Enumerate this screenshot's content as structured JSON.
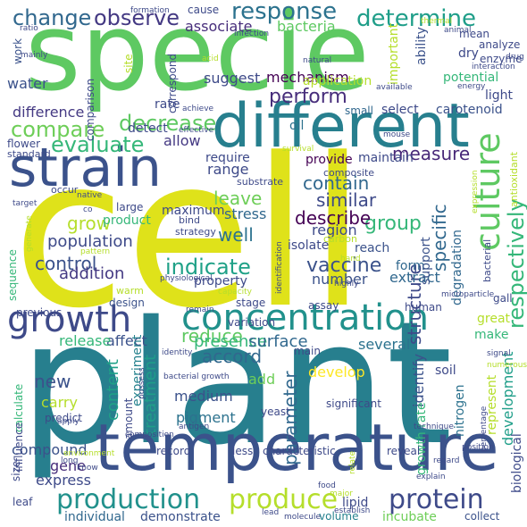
{
  "words": [
    {
      "t": "cell",
      "c": "#dfe21a"
    },
    {
      "t": "plant",
      "c": "#277f8e"
    },
    {
      "t": "specie",
      "c": "#5ec962"
    },
    {
      "t": "temperature",
      "c": "#3b528b"
    },
    {
      "t": "different",
      "c": "#277f8e"
    },
    {
      "t": "strain",
      "c": "#3b528b"
    },
    {
      "t": "concentration",
      "c": "#21918c"
    },
    {
      "t": "growth",
      "c": "#3e4a89"
    },
    {
      "t": "culture",
      "c": "#5ec962"
    },
    {
      "t": "production",
      "c": "#21918c"
    },
    {
      "t": "protein",
      "c": "#3e4a89"
    },
    {
      "t": "produce",
      "c": "#b5de2b"
    },
    {
      "t": "response",
      "c": "#2c728e"
    },
    {
      "t": "determine",
      "c": "#1f9e89"
    },
    {
      "t": "observe",
      "c": "#443983"
    },
    {
      "t": "change",
      "c": "#31688e"
    },
    {
      "t": "respectively",
      "c": "#35b779"
    },
    {
      "t": "vaccine",
      "c": "#3b528b"
    },
    {
      "t": "indicate",
      "c": "#1fa187"
    },
    {
      "t": "decrease",
      "c": "#5ec962"
    },
    {
      "t": "evaluate",
      "c": "#35b779"
    },
    {
      "t": "compare",
      "c": "#6ece58"
    },
    {
      "t": "perform",
      "c": "#472d7b"
    },
    {
      "t": "specific",
      "c": "#31688e"
    },
    {
      "t": "structure",
      "c": "#3e4a89"
    },
    {
      "t": "parameter",
      "c": "#31688e"
    },
    {
      "t": "group",
      "c": "#35b779"
    },
    {
      "t": "measure",
      "c": "#482878"
    },
    {
      "t": "contain",
      "c": "#31688e"
    },
    {
      "t": "similar",
      "c": "#3e4a89"
    },
    {
      "t": "describe",
      "c": "#440154"
    },
    {
      "t": "control",
      "c": "#3b528b"
    },
    {
      "t": "reduce",
      "c": "#5ec962"
    },
    {
      "t": "accord",
      "c": "#31688e"
    },
    {
      "t": "well",
      "c": "#2c728e"
    },
    {
      "t": "leave",
      "c": "#6ece58"
    },
    {
      "t": "grow",
      "c": "#b5de2b"
    },
    {
      "t": "content",
      "c": "#1fa187"
    },
    {
      "t": "treatment",
      "c": "#1f9e89"
    },
    {
      "t": "new",
      "c": "#3b528b"
    },
    {
      "t": "presence",
      "c": "#35b779"
    },
    {
      "t": "surface",
      "c": "#31688e"
    },
    {
      "t": "population",
      "c": "#3e4a89"
    },
    {
      "t": "addition",
      "c": "#443983"
    },
    {
      "t": "associate",
      "c": "#472d7b"
    },
    {
      "t": "bacteria",
      "c": "#5ec962"
    },
    {
      "t": "mechanism",
      "c": "#440154"
    },
    {
      "t": "suggest",
      "c": "#3e4a89"
    },
    {
      "t": "water",
      "c": "#3b528b"
    },
    {
      "t": "difference",
      "c": "#443983"
    },
    {
      "t": "allow",
      "c": "#443983"
    },
    {
      "t": "range",
      "c": "#3e4a89"
    },
    {
      "t": "stress",
      "c": "#31688e"
    },
    {
      "t": "region",
      "c": "#3e4a89"
    },
    {
      "t": "number",
      "c": "#3b528b"
    },
    {
      "t": "extract",
      "c": "#31688e"
    },
    {
      "t": "development",
      "c": "#1f9e89"
    },
    {
      "t": "several",
      "c": "#2c728e"
    },
    {
      "t": "affect",
      "c": "#3b528b"
    },
    {
      "t": "release",
      "c": "#35b779"
    },
    {
      "t": "medium",
      "c": "#3b528b"
    },
    {
      "t": "carry",
      "c": "#b5de2b"
    },
    {
      "t": "add",
      "c": "#6ece58"
    },
    {
      "t": "pigment",
      "c": "#2c728e"
    },
    {
      "t": "identify",
      "c": "#3b528b"
    },
    {
      "t": "develop",
      "c": "#fde725"
    },
    {
      "t": "compound",
      "c": "#3b528b"
    },
    {
      "t": "express",
      "c": "#3e4a89"
    },
    {
      "t": "gene",
      "c": "#472d7b"
    },
    {
      "t": "individual",
      "c": "#31688e"
    },
    {
      "t": "demonstrate",
      "c": "#3b528b"
    },
    {
      "t": "lipid",
      "c": "#3e4a89"
    },
    {
      "t": "volume",
      "c": "#26828e"
    },
    {
      "t": "incubate",
      "c": "#6ece58"
    },
    {
      "t": "collect",
      "c": "#3b528b"
    },
    {
      "t": "biological",
      "c": "#3e4a89"
    },
    {
      "t": "represent",
      "c": "#b5de2b"
    },
    {
      "t": "nitrogen",
      "c": "#2c728e"
    },
    {
      "t": "growth rate",
      "c": "#35b779"
    },
    {
      "t": "soil",
      "c": "#3e4a89"
    },
    {
      "t": "make",
      "c": "#35b779"
    },
    {
      "t": "great",
      "c": "#b5de2b"
    },
    {
      "t": "form",
      "c": "#31688e"
    },
    {
      "t": "degradation",
      "c": "#31688e"
    },
    {
      "t": "support",
      "c": "#3b528b"
    },
    {
      "t": "provide",
      "c": "#440154"
    },
    {
      "t": "maintain",
      "c": "#3e4a89"
    },
    {
      "t": "reach",
      "c": "#3b528b"
    },
    {
      "t": "isolate",
      "c": "#3e4a89"
    },
    {
      "t": "experiment",
      "c": "#26828e"
    },
    {
      "t": "design",
      "c": "#3b528b"
    },
    {
      "t": "property",
      "c": "#3e4a89"
    },
    {
      "t": "maximum",
      "c": "#3e4a89"
    },
    {
      "t": "product",
      "c": "#35b779"
    },
    {
      "t": "require",
      "c": "#3e4a89"
    },
    {
      "t": "detect",
      "c": "#3e4a89"
    },
    {
      "t": "rate",
      "c": "#3e4a89"
    },
    {
      "t": "oil",
      "c": "#2c728e"
    },
    {
      "t": "small",
      "c": "#31688e"
    },
    {
      "t": "select",
      "c": "#3e4a89"
    },
    {
      "t": "carotenoid",
      "c": "#3b528b"
    },
    {
      "t": "light",
      "c": "#3e4a89"
    },
    {
      "t": "potential",
      "c": "#35b779"
    },
    {
      "t": "important",
      "c": "#b5de2b"
    },
    {
      "t": "application",
      "c": "#b5de2b"
    },
    {
      "t": "ability",
      "c": "#3b528b"
    },
    {
      "t": "dry",
      "c": "#3e4a89"
    },
    {
      "t": "mean",
      "c": "#3e4a89"
    },
    {
      "t": "analyze",
      "c": "#3e4a89"
    },
    {
      "t": "enzyme",
      "c": "#3e4a89"
    },
    {
      "t": "correspond",
      "c": "#3e4a89"
    },
    {
      "t": "comparison",
      "c": "#3e4a89"
    },
    {
      "t": "site",
      "c": "#b5de2b"
    },
    {
      "t": "cause",
      "c": "#3e4a89"
    },
    {
      "t": "work",
      "c": "#3b528b"
    },
    {
      "t": "flower",
      "c": "#3e4a89"
    },
    {
      "t": "standard",
      "c": "#3e4a89"
    },
    {
      "t": "occur",
      "c": "#3e4a89"
    },
    {
      "t": "sequence",
      "c": "#35b779"
    },
    {
      "t": "previous",
      "c": "#3e4a89"
    },
    {
      "t": "calculate",
      "c": "#35b779"
    },
    {
      "t": "influence",
      "c": "#3e4a89"
    },
    {
      "t": "size",
      "c": "#3e4a89"
    },
    {
      "t": "leaf",
      "c": "#3e4a89"
    },
    {
      "t": "predict",
      "c": "#3e4a89"
    },
    {
      "t": "amount",
      "c": "#3e4a89"
    },
    {
      "t": "record",
      "c": "#3e4a89"
    },
    {
      "t": "less",
      "c": "#3e4a89"
    },
    {
      "t": "characteristic",
      "c": "#3e4a89"
    },
    {
      "t": "reveal",
      "c": "#3e4a89"
    },
    {
      "t": "significant",
      "c": "#3e4a89"
    },
    {
      "t": "main",
      "c": "#3e4a89"
    },
    {
      "t": "stage",
      "c": "#3e4a89"
    },
    {
      "t": "variation",
      "c": "#3e4a89"
    },
    {
      "t": "assay",
      "c": "#3e4a89"
    },
    {
      "t": "human",
      "c": "#3e4a89"
    },
    {
      "t": "yeast",
      "c": "#3e4a89"
    },
    {
      "t": "antioxidant",
      "c": "#b5de2b"
    },
    {
      "t": "bacterial",
      "c": "#3e4a89"
    },
    {
      "t": "gall",
      "c": "#3e4a89"
    },
    {
      "t": "composite",
      "c": "#3e4a89"
    },
    {
      "t": "substrate",
      "c": "#3e4a89"
    },
    {
      "t": "carbon",
      "c": "#b5de2b"
    },
    {
      "t": "strategy",
      "c": "#3e4a89"
    },
    {
      "t": "bind",
      "c": "#3e4a89"
    },
    {
      "t": "large",
      "c": "#3e4a89"
    },
    {
      "t": "warm",
      "c": "#b5de2b"
    },
    {
      "t": "highly",
      "c": "#3e4a89"
    },
    {
      "t": "identification",
      "c": "#3e4a89"
    },
    {
      "t": "technique",
      "c": "#3e4a89"
    },
    {
      "t": "percentage",
      "c": "#3e4a89"
    },
    {
      "t": "expression",
      "c": "#b5de2b"
    },
    {
      "t": "infection",
      "c": "#3e4a89"
    },
    {
      "t": "formation",
      "c": "#3e4a89"
    },
    {
      "t": "ratio",
      "c": "#3e4a89"
    },
    {
      "t": "mainly",
      "c": "#3e4a89"
    },
    {
      "t": "natural",
      "c": "#3e4a89"
    },
    {
      "t": "acid",
      "c": "#b5de2b"
    },
    {
      "t": "thermal",
      "c": "#b5de2b"
    },
    {
      "t": "animal",
      "c": "#3e4a89"
    },
    {
      "t": "drug",
      "c": "#3e4a89"
    },
    {
      "t": "interaction",
      "c": "#3e4a89"
    },
    {
      "t": "energy",
      "c": "#3e4a89"
    },
    {
      "t": "available",
      "c": "#3e4a89"
    },
    {
      "t": "achieve",
      "c": "#3e4a89"
    },
    {
      "t": "effective",
      "c": "#3e4a89"
    },
    {
      "t": "mouse",
      "c": "#3e4a89"
    },
    {
      "t": "survival",
      "c": "#b5de2b"
    },
    {
      "t": "native",
      "c": "#3e4a89"
    },
    {
      "t": "target",
      "c": "#3e4a89"
    },
    {
      "t": "generate",
      "c": "#b5de2b"
    },
    {
      "t": "co",
      "c": "#3e4a89"
    },
    {
      "t": "pattern",
      "c": "#b5de2b"
    },
    {
      "t": "physiological",
      "c": "#3e4a89"
    },
    {
      "t": "hand",
      "c": "#b5de2b"
    },
    {
      "t": "capacity",
      "c": "#b5de2b"
    },
    {
      "t": "microparticle",
      "c": "#3e4a89"
    },
    {
      "t": "remain",
      "c": "#3e4a89"
    },
    {
      "t": "identity",
      "c": "#3e4a89"
    },
    {
      "t": "possess",
      "c": "#3e4a89"
    },
    {
      "t": "bacterial growth",
      "c": "#3e4a89"
    },
    {
      "t": "apply",
      "c": "#3e4a89"
    },
    {
      "t": "antigen",
      "c": "#3e4a89"
    },
    {
      "t": "composition",
      "c": "#3e4a89"
    },
    {
      "t": "environment",
      "c": "#b5de2b"
    },
    {
      "t": "long",
      "c": "#3e4a89"
    },
    {
      "t": "know",
      "c": "#3e4a89"
    },
    {
      "t": "food",
      "c": "#3e4a89"
    },
    {
      "t": "major",
      "c": "#b5de2b"
    },
    {
      "t": "relate",
      "c": "#b5de2b"
    },
    {
      "t": "establish",
      "c": "#3e4a89"
    },
    {
      "t": "molecule",
      "c": "#3e4a89"
    },
    {
      "t": "lead",
      "c": "#3e4a89"
    },
    {
      "t": "explain",
      "c": "#3e4a89"
    },
    {
      "t": "regard",
      "c": "#3e4a89"
    },
    {
      "t": "position",
      "c": "#3e4a89"
    },
    {
      "t": "signal",
      "c": "#3e4a89"
    },
    {
      "t": "numerous",
      "c": "#b5de2b"
    }
  ]
}
